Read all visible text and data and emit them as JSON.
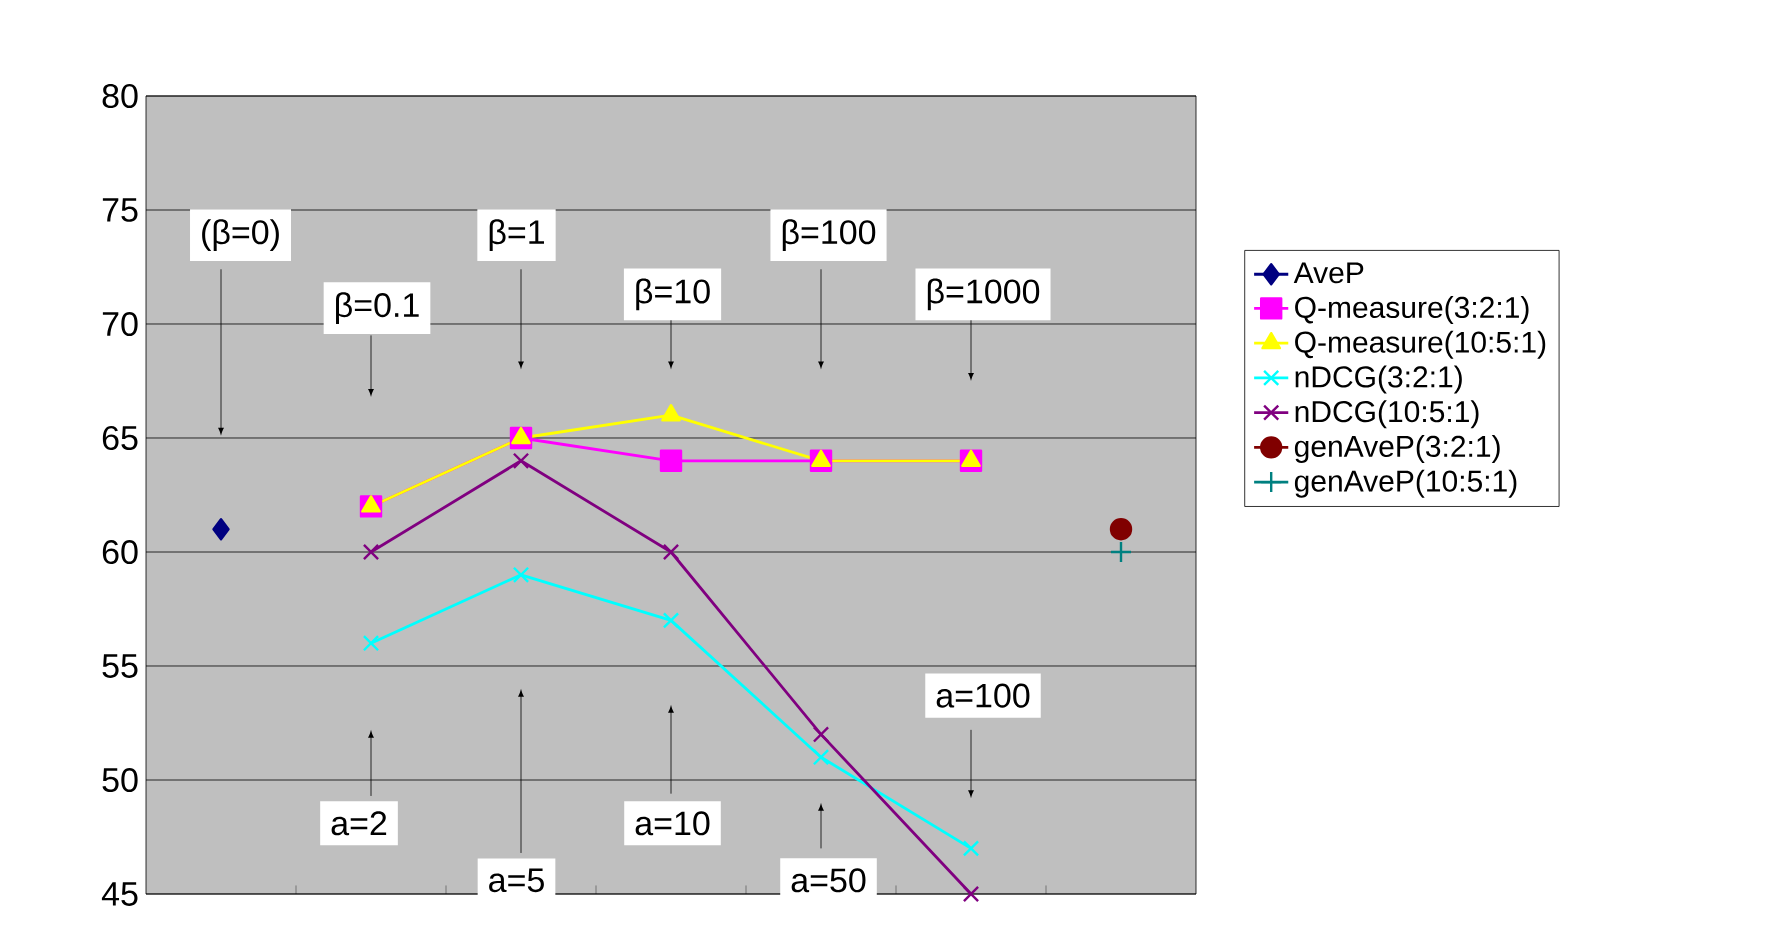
{
  "chart_data": {
    "type": "line",
    "categories": [
      null,
      null,
      null,
      null,
      null,
      null,
      null
    ],
    "series": [
      {
        "name": "AveP",
        "color": "#000080",
        "marker": "diamond",
        "values": [
          61,
          null,
          null,
          null,
          null,
          null,
          null
        ]
      },
      {
        "name": "Q-measure(3:2:1)",
        "color": "#ff00ff",
        "marker": "square",
        "values": [
          null,
          62,
          65,
          64,
          64,
          64,
          null
        ]
      },
      {
        "name": "Q-measure(10:5:1)",
        "color": "#ffff00",
        "marker": "triangle",
        "values": [
          null,
          62,
          65,
          66,
          64,
          64,
          null
        ]
      },
      {
        "name": "nDCG(3:2:1)",
        "color": "#00ffff",
        "marker": "cross",
        "values": [
          null,
          56,
          59,
          57,
          51,
          47,
          null
        ]
      },
      {
        "name": "nDCG(10:5:1)",
        "color": "#800080",
        "marker": "cross",
        "values": [
          null,
          60,
          64,
          60,
          52,
          45,
          null
        ]
      },
      {
        "name": "genAveP(3:2:1)",
        "color": "#800000",
        "marker": "circle",
        "values": [
          null,
          null,
          null,
          null,
          null,
          null,
          61
        ]
      },
      {
        "name": "genAveP(10:5:1)",
        "color": "#008080",
        "marker": "plus",
        "values": [
          null,
          null,
          null,
          null,
          null,
          null,
          60
        ]
      }
    ],
    "ylim": [
      45,
      80
    ],
    "yticks": [
      45,
      50,
      55,
      60,
      65,
      70,
      75,
      80
    ],
    "grid": "y",
    "legend": "right",
    "annotations": [
      "(β=0)",
      "β=0.1",
      "β=1",
      "β=10",
      "β=100",
      "β=1000",
      "a=2",
      "a=5",
      "a=10",
      "a=50",
      "a=100"
    ]
  }
}
